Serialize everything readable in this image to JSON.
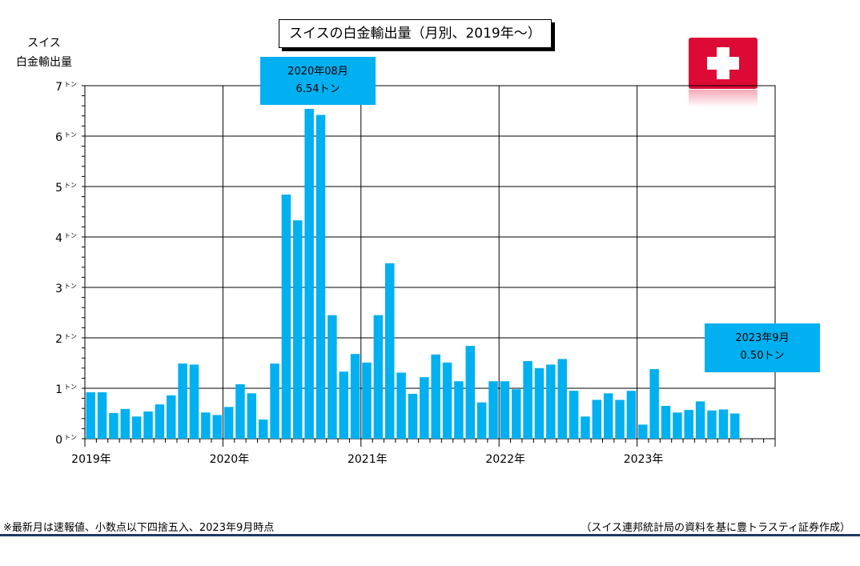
{
  "title": "スイスの白金輸出量（月別、2019年～）",
  "y_axis_label": [
    "スイス",
    "白金輸出量"
  ],
  "callouts": [
    {
      "line1": "2020年08月",
      "line2": "6.54トン"
    },
    {
      "line1": "2023年9月",
      "line2": "0.50トン"
    }
  ],
  "footer": {
    "note": "※最新月は速報値、小数点以下四捨五入、2023年9月時点",
    "source": "（スイス連邦統計局の資料を基に豊トラスティ証券作成）"
  },
  "colors": {
    "bar": "#00b0f0",
    "callout": "#00b0f0",
    "flag": "#dc0a35",
    "footer_line": "#1f3864"
  },
  "icons": {
    "flag": "swiss-flag-icon"
  },
  "chart_data": {
    "type": "bar",
    "title": "スイスの白金輸出量（月別、2019年～）",
    "ylabel": "スイス 白金輸出量",
    "xlabel": "",
    "ylim": [
      0,
      7
    ],
    "y_ticks": [
      0,
      1,
      2,
      3,
      4,
      5,
      6,
      7
    ],
    "y_tick_unit": "トン",
    "x_range": [
      "2019-01",
      "2023-12"
    ],
    "x_tick_labels": [
      "2019年",
      "2020年",
      "2021年",
      "2022年",
      "2023年"
    ],
    "grid": true,
    "categories": [
      "2019-01",
      "2019-02",
      "2019-03",
      "2019-04",
      "2019-05",
      "2019-06",
      "2019-07",
      "2019-08",
      "2019-09",
      "2019-10",
      "2019-11",
      "2019-12",
      "2020-01",
      "2020-02",
      "2020-03",
      "2020-04",
      "2020-05",
      "2020-06",
      "2020-07",
      "2020-08",
      "2020-09",
      "2020-10",
      "2020-11",
      "2020-12",
      "2021-01",
      "2021-02",
      "2021-03",
      "2021-04",
      "2021-05",
      "2021-06",
      "2021-07",
      "2021-08",
      "2021-09",
      "2021-10",
      "2021-11",
      "2021-12",
      "2022-01",
      "2022-02",
      "2022-03",
      "2022-04",
      "2022-05",
      "2022-06",
      "2022-07",
      "2022-08",
      "2022-09",
      "2022-10",
      "2022-11",
      "2022-12",
      "2023-01",
      "2023-02",
      "2023-03",
      "2023-04",
      "2023-05",
      "2023-06",
      "2023-07",
      "2023-08",
      "2023-09"
    ],
    "values": [
      0.92,
      0.92,
      0.51,
      0.59,
      0.44,
      0.54,
      0.68,
      0.86,
      1.49,
      1.47,
      0.52,
      0.47,
      0.63,
      1.08,
      0.9,
      0.38,
      1.49,
      4.84,
      4.33,
      6.54,
      6.42,
      2.45,
      1.33,
      1.68,
      1.51,
      2.45,
      3.48,
      1.31,
      0.89,
      1.22,
      1.67,
      1.51,
      1.14,
      1.84,
      0.72,
      1.14,
      1.14,
      0.98,
      1.54,
      1.4,
      1.47,
      1.58,
      0.95,
      0.44,
      0.77,
      0.9,
      0.77,
      0.95,
      0.28,
      1.38,
      0.65,
      0.52,
      0.57,
      0.74,
      0.56,
      0.58,
      0.5
    ]
  }
}
